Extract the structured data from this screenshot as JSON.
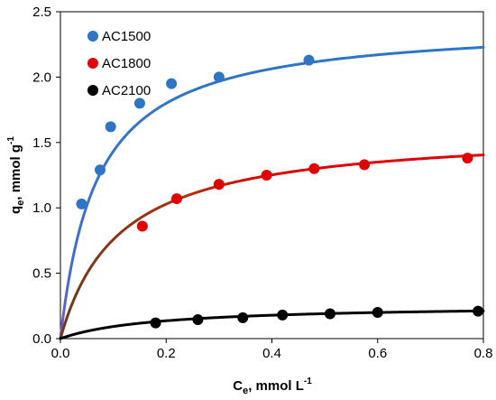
{
  "chart_data": {
    "type": "scatter",
    "title": "",
    "xlabel_main": "C",
    "xlabel_sub": "e",
    "xlabel_unit": ", mmol L",
    "xlabel_sup": "-1",
    "ylabel_main": "q",
    "ylabel_sub": "e",
    "ylabel_unit": ", mmol g",
    "ylabel_sup": "-1",
    "xlim": [
      0,
      0.8
    ],
    "ylim": [
      0,
      2.5
    ],
    "xticks": [
      "0.0",
      "0.2",
      "0.4",
      "0.6",
      "0.8"
    ],
    "yticks": [
      "0.0",
      "0.5",
      "1.0",
      "1.5",
      "2.0",
      "2.5"
    ],
    "xtick_values": [
      0,
      0.2,
      0.4,
      0.6,
      0.8
    ],
    "ytick_values": [
      0,
      0.5,
      1.0,
      1.5,
      2.0,
      2.5
    ],
    "grid": false,
    "legend": "top-left",
    "series": [
      {
        "name": "AC1500",
        "color": "#2E75C5",
        "x": [
          0.04,
          0.075,
          0.095,
          0.15,
          0.21,
          0.3,
          0.47
        ],
        "y": [
          1.03,
          1.29,
          1.62,
          1.8,
          1.95,
          2.0,
          2.13
        ],
        "fit": {
          "qmax": 2.42,
          "k": 14.5
        }
      },
      {
        "name": "AC1800",
        "color": "#E00000",
        "x": [
          0.155,
          0.22,
          0.3,
          0.39,
          0.48,
          0.575,
          0.77
        ],
        "y": [
          0.86,
          1.07,
          1.18,
          1.25,
          1.3,
          1.33,
          1.38
        ],
        "fit": {
          "qmax": 1.6,
          "k": 9.0
        }
      },
      {
        "name": "AC2100",
        "color": "#000000",
        "x": [
          0.18,
          0.26,
          0.345,
          0.42,
          0.51,
          0.6,
          0.79
        ],
        "y": [
          0.12,
          0.145,
          0.16,
          0.18,
          0.19,
          0.2,
          0.21
        ],
        "fit": {
          "qmax": 0.26,
          "k": 5.5
        }
      }
    ]
  }
}
